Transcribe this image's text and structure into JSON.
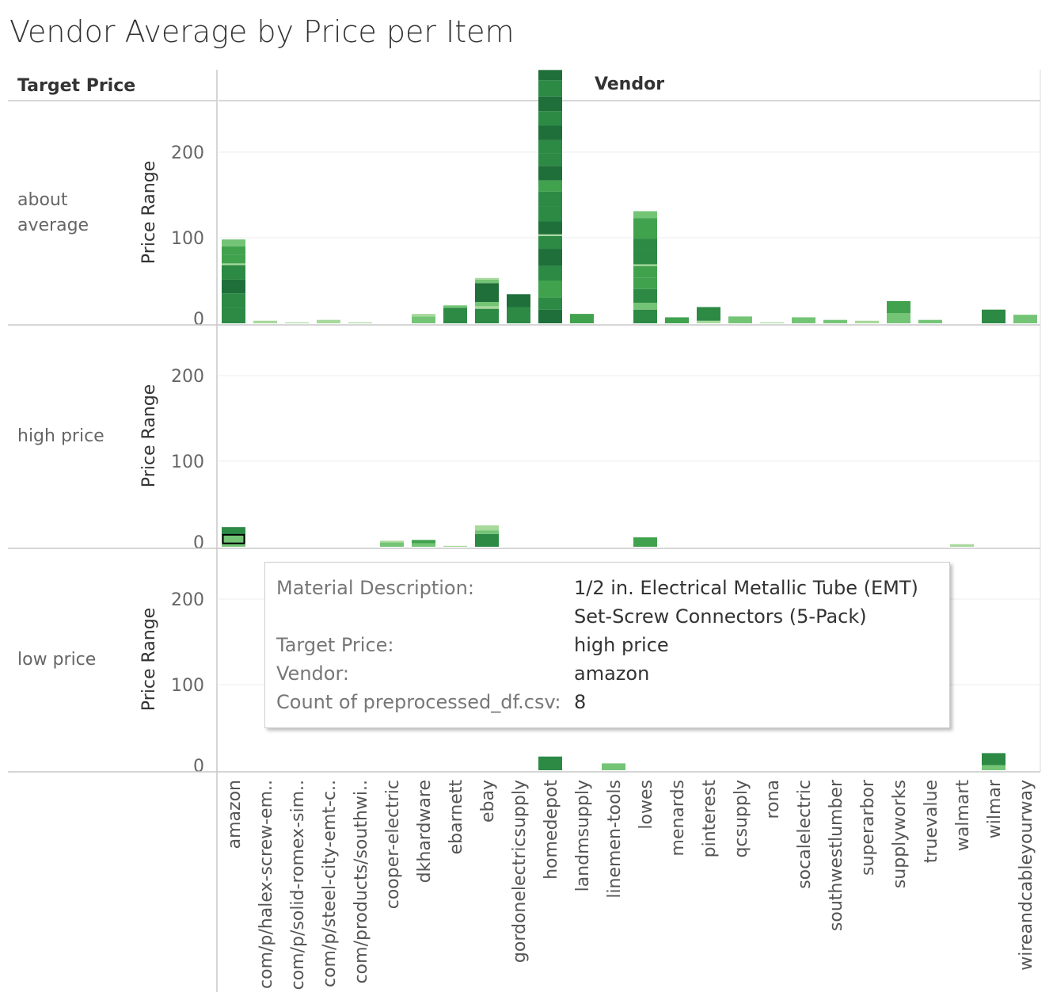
{
  "title": "Vendor Average by Price per Item",
  "headers": {
    "row": "Target Price",
    "column": "Vendor"
  },
  "chart_data": {
    "type": "bar",
    "stacked": true,
    "title": "Vendor Average by Price per Item",
    "ylabel": "Price Range",
    "ylim": [
      0,
      250
    ],
    "yticks": [
      0,
      100,
      200
    ],
    "row_dimension": "Target Price",
    "column_dimension": "Vendor",
    "rows": [
      "about average",
      "high price",
      "low price"
    ],
    "categories": [
      "amazon",
      "com/p/halex-screw-em..",
      "com/p/solid-romex-sim..",
      "com/p/steel-city-emt-c..",
      "com/products/southwi..",
      "cooper-electric",
      "dkhardware",
      "ebarnett",
      "ebay",
      "gordonelectricsupply",
      "homedepot",
      "landmsupply",
      "linemen-tools",
      "lowes",
      "menards",
      "pinterest",
      "qcsupply",
      "rona",
      "socalelectric",
      "southwestlumber",
      "superarbor",
      "supplyworks",
      "truevalue",
      "walmart",
      "wilmar",
      "wireandcableyourway"
    ],
    "color_scale": [
      "#a7d99b",
      "#74c476",
      "#41a24e",
      "#2c8a45",
      "#1f6f3a"
    ],
    "panels": [
      {
        "row": "about average",
        "stacks": {
          "amazon": [
            [
              18,
              3
            ],
            [
              17,
              3
            ],
            [
              16,
              4
            ],
            [
              17,
              3
            ],
            [
              2,
              0
            ],
            [
              10,
              2
            ],
            [
              10,
              2
            ],
            [
              8,
              1
            ]
          ],
          "com/p/halex-screw-em..": [
            [
              3,
              0
            ]
          ],
          "com/p/solid-romex-sim..": [
            [
              1,
              0
            ]
          ],
          "com/p/steel-city-emt-c..": [
            [
              4,
              0
            ]
          ],
          "com/products/southwi..": [
            [
              1,
              0
            ]
          ],
          "dkhardware": [
            [
              8,
              1
            ],
            [
              3,
              0
            ]
          ],
          "ebarnett": [
            [
              18,
              3
            ],
            [
              3,
              1
            ]
          ],
          "ebay": [
            [
              17,
              3
            ],
            [
              3,
              0
            ],
            [
              5,
              1
            ],
            [
              22,
              4
            ],
            [
              4,
              1
            ],
            [
              2,
              0
            ]
          ],
          "gordonelectricsupply": [
            [
              19,
              3
            ],
            [
              15,
              4
            ]
          ],
          "homedepot": [
            [
              16,
              4
            ],
            [
              14,
              3
            ],
            [
              20,
              2
            ],
            [
              17,
              3
            ],
            [
              20,
              4
            ],
            [
              15,
              3
            ],
            [
              2,
              0
            ],
            [
              15,
              4
            ],
            [
              18,
              3
            ],
            [
              17,
              3
            ],
            [
              13,
              2
            ],
            [
              17,
              4
            ],
            [
              15,
              3
            ],
            [
              15,
              3
            ],
            [
              17,
              4
            ],
            [
              17,
              3
            ],
            [
              17,
              4
            ],
            [
              19,
              3
            ],
            [
              12,
              4
            ]
          ],
          "landmsupply": [
            [
              11,
              2
            ]
          ],
          "lowes": [
            [
              16,
              3
            ],
            [
              8,
              1
            ],
            [
              16,
              3
            ],
            [
              13,
              2
            ],
            [
              14,
              2
            ],
            [
              2,
              0
            ],
            [
              18,
              3
            ],
            [
              12,
              3
            ],
            [
              24,
              2
            ],
            [
              8,
              1
            ]
          ],
          "menards": [
            [
              7,
              2
            ]
          ],
          "pinterest": [
            [
              3,
              0
            ],
            [
              16,
              3
            ]
          ],
          "qcsupply": [
            [
              8,
              1
            ]
          ],
          "rona": [
            [
              1,
              0
            ]
          ],
          "socalelectric": [
            [
              7,
              1
            ]
          ],
          "southwestlumber": [
            [
              4,
              1
            ]
          ],
          "superarbor": [
            [
              3,
              0
            ]
          ],
          "supplyworks": [
            [
              12,
              1
            ],
            [
              14,
              2
            ]
          ],
          "truevalue": [
            [
              4,
              1
            ]
          ],
          "wilmar": [
            [
              16,
              3
            ]
          ],
          "wireandcableyourway": [
            [
              10,
              1
            ]
          ]
        }
      },
      {
        "row": "high price",
        "stacks": {
          "amazon": [
            [
              4,
              1
            ],
            [
              10,
              1
            ],
            [
              9,
              3
            ]
          ],
          "cooper-electric": [
            [
              5,
              1
            ],
            [
              2,
              0
            ]
          ],
          "dkhardware": [
            [
              4,
              1
            ],
            [
              4,
              2
            ]
          ],
          "ebarnett": [
            [
              1,
              0
            ]
          ],
          "ebay": [
            [
              15,
              3
            ],
            [
              4,
              1
            ],
            [
              6,
              0
            ]
          ],
          "lowes": [
            [
              11,
              2
            ]
          ],
          "walmart": [
            [
              3,
              0
            ]
          ]
        }
      },
      {
        "row": "low price",
        "stacks": {
          "homedepot": [
            [
              16,
              3
            ]
          ],
          "linemen-tools": [
            [
              8,
              1
            ]
          ],
          "wilmar": [
            [
              6,
              1
            ],
            [
              14,
              3
            ]
          ]
        }
      }
    ],
    "highlight": {
      "row": "high price",
      "category": "amazon",
      "segment": 1
    }
  },
  "tooltip": {
    "rows": [
      {
        "key": "Material Description:",
        "value": "1/2 in. Electrical Metallic Tube (EMT)"
      },
      {
        "key": "",
        "value": "Set-Screw Connectors (5-Pack)"
      },
      {
        "key": "Target Price:",
        "value": "high price"
      },
      {
        "key": "Vendor:",
        "value": "amazon"
      },
      {
        "key": "Count of preprocessed_df.csv:",
        "value": "8"
      }
    ]
  }
}
